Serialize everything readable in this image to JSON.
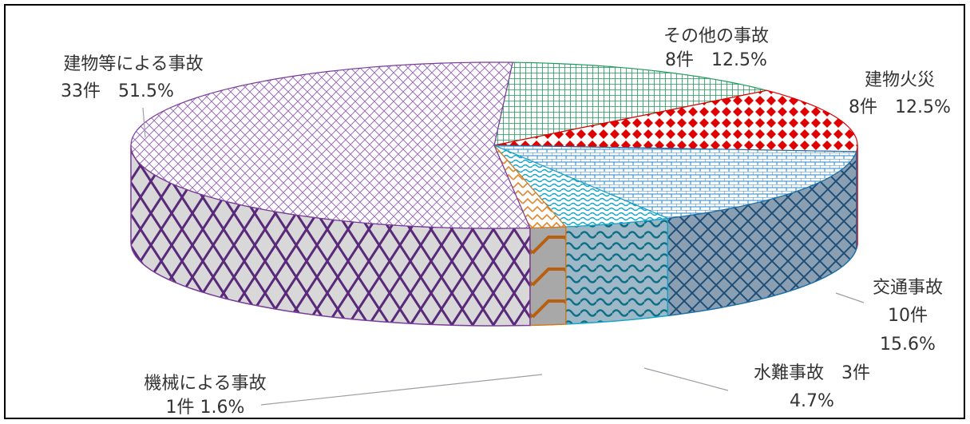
{
  "chart_data": {
    "type": "pie",
    "title": "",
    "total_unit": "件",
    "slices": [
      {
        "name": "その他の事故",
        "count": 8,
        "percent": 12.5,
        "label_line1": "その他の事故",
        "label_line2": "8件　12.5%",
        "color": "#1f9a5a",
        "pattern": "grid"
      },
      {
        "name": "建物火災",
        "count": 8,
        "percent": 12.5,
        "label_line1": "建物火災",
        "label_line2": "8件　12.5%",
        "color": "#e00000",
        "pattern": "diamond"
      },
      {
        "name": "交通事故",
        "count": 10,
        "percent": 15.6,
        "label_line1": "交通事故",
        "label_line2": "10件",
        "label_line3": "15.6%",
        "color": "#1f6fa8",
        "pattern": "brick"
      },
      {
        "name": "水難事故",
        "count": 3,
        "percent": 4.7,
        "label_line1": "水難事故　3件",
        "label_line2": "4.7%",
        "color": "#14a5c8",
        "pattern": "wave"
      },
      {
        "name": "機械による事故",
        "count": 1,
        "percent": 1.6,
        "label_line1": "機械による事故",
        "label_line2": "1件 1.6%",
        "color": "#d07a20",
        "pattern": "zigzag"
      },
      {
        "name": "建物等による事故",
        "count": 33,
        "percent": 51.5,
        "label_line1": "建物等による事故",
        "label_line2": "33件　51.5%",
        "color": "#7a3a9a",
        "pattern": "lattice"
      }
    ]
  }
}
